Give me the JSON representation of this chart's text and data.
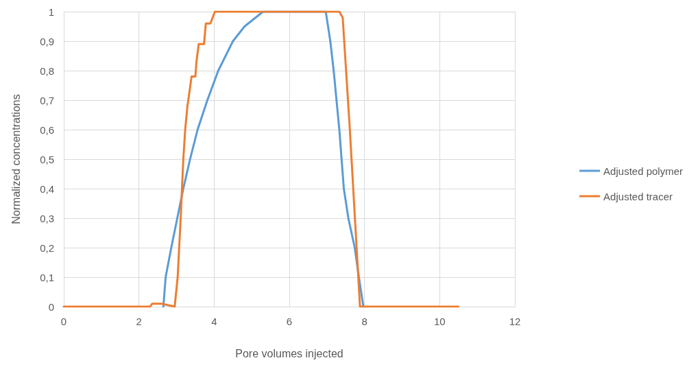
{
  "chart_data": {
    "type": "line",
    "xlabel": "Pore volumes injected",
    "ylabel": "Normalized concentrations",
    "xlim": [
      0,
      12
    ],
    "xticks": [
      0,
      2,
      4,
      6,
      8,
      10,
      12
    ],
    "ylim": [
      0,
      1
    ],
    "yticks": [
      0,
      {
        "value": 0.1,
        "label": "0,1"
      },
      {
        "value": 0.2,
        "label": "0,2"
      },
      {
        "value": 0.3,
        "label": "0,3"
      },
      {
        "value": 0.4,
        "label": "0,4"
      },
      {
        "value": 0.5,
        "label": "0,5"
      },
      {
        "value": 0.6,
        "label": "0,6"
      },
      {
        "value": 0.7,
        "label": "0,7"
      },
      {
        "value": 0.8,
        "label": "0,8"
      },
      {
        "value": 0.9,
        "label": "0,9"
      },
      1
    ],
    "grid": true,
    "legend": "right",
    "marker": "none",
    "line_style": "solid",
    "series": [
      {
        "name": "Adjusted polymer",
        "color": "#5b9bd5",
        "x": [
          2.65,
          2.71,
          2.86,
          3.02,
          3.18,
          3.36,
          3.56,
          3.82,
          4.11,
          4.5,
          4.81,
          5.3,
          6.97,
          7.09,
          7.18,
          7.33,
          7.45,
          7.57,
          7.74,
          7.85,
          7.97
        ],
        "values": [
          0,
          0.1,
          0.2,
          0.3,
          0.4,
          0.5,
          0.6,
          0.7,
          0.8,
          0.9,
          0.95,
          1,
          1,
          0.9,
          0.8,
          0.6,
          0.4,
          0.3,
          0.2,
          0.1,
          0
        ]
      },
      {
        "name": "Adjusted tracer",
        "color": "#ed7d31",
        "x": [
          0,
          2.3,
          2.35,
          2.6,
          2.95,
          3.03,
          3.11,
          3.18,
          3.23,
          3.29,
          3.4,
          3.5,
          3.53,
          3.59,
          3.73,
          3.78,
          3.9,
          4.02,
          7.33,
          7.42,
          7.51,
          7.61,
          7.7,
          7.79,
          7.88,
          10.5
        ],
        "values": [
          0,
          0,
          0.01,
          0.01,
          0,
          0.1,
          0.3,
          0.5,
          0.6,
          0.68,
          0.78,
          0.78,
          0.83,
          0.89,
          0.89,
          0.96,
          0.96,
          1,
          1,
          0.98,
          0.8,
          0.6,
          0.4,
          0.2,
          0,
          0
        ]
      }
    ]
  }
}
